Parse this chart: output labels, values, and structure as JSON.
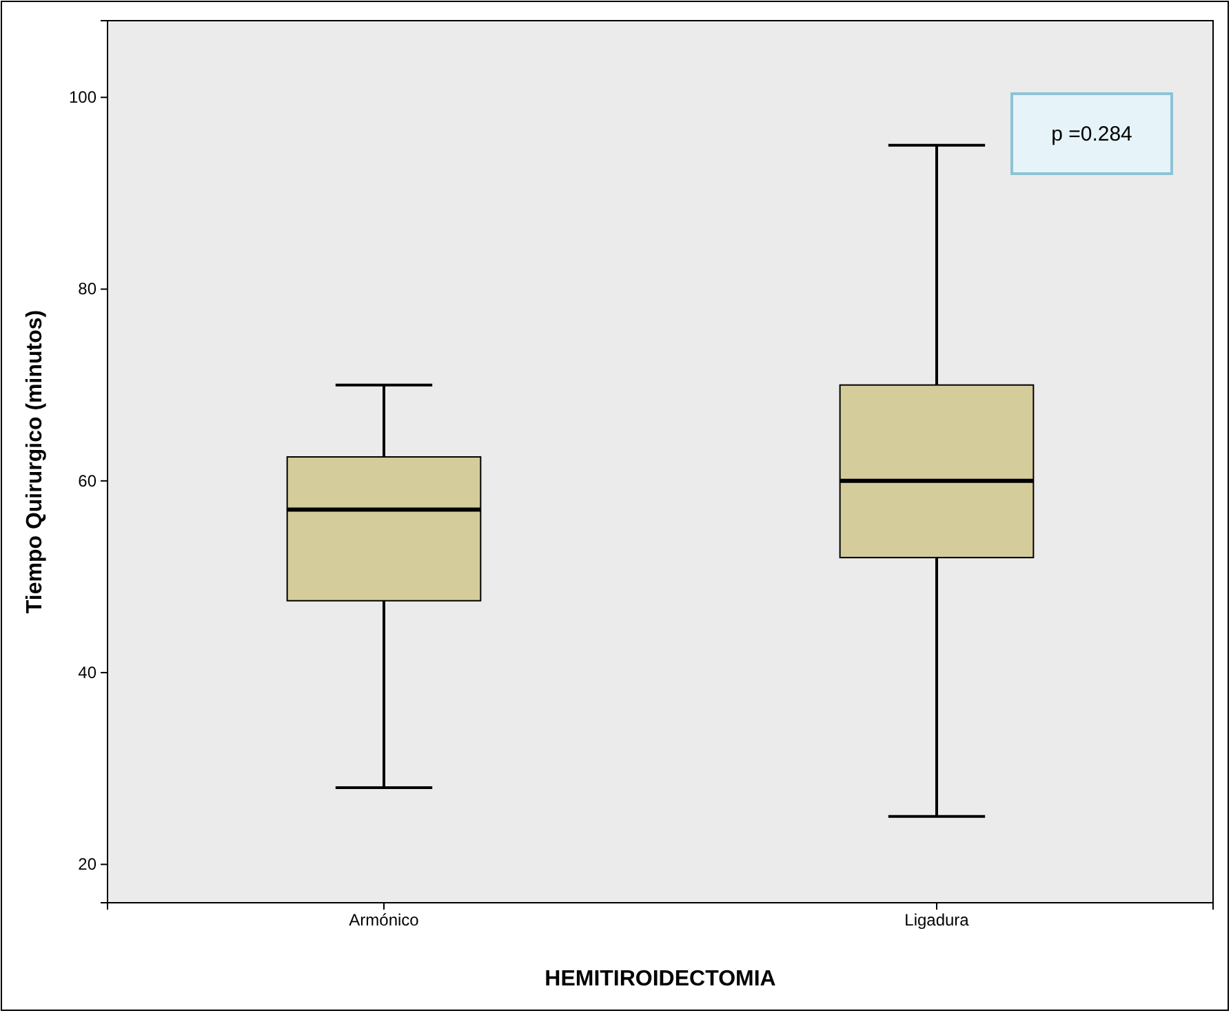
{
  "chart_data": {
    "type": "box",
    "xlabel": "HEMITIROIDECTOMIA",
    "ylabel": "Tiempo Quirurgico (minutos)",
    "categories": [
      "Armónico",
      "Ligadura"
    ],
    "boxes": [
      {
        "low": 28,
        "q1": 47.5,
        "median": 57,
        "q3": 62.5,
        "high": 70
      },
      {
        "low": 25,
        "q1": 52,
        "median": 60,
        "q3": 70,
        "high": 95
      }
    ],
    "color": "#d4cc9a",
    "ylim": [
      16,
      108
    ],
    "yticks": [
      20,
      40,
      60,
      80,
      100
    ],
    "annotations": [
      "p =0.284"
    ]
  }
}
